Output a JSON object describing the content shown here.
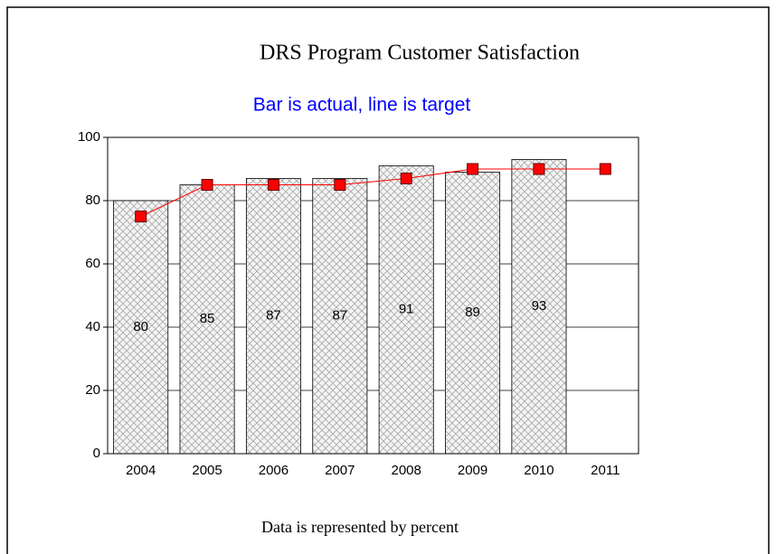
{
  "chart_data": {
    "type": "bar",
    "title": "DRS Program Customer Satisfaction",
    "subtitle": "Bar is actual, line is target",
    "footnote": "Data is represented by percent",
    "categories": [
      "2004",
      "2005",
      "2006",
      "2007",
      "2008",
      "2009",
      "2010",
      "2011"
    ],
    "series": [
      {
        "type": "bar",
        "color": "#b0b0b0",
        "values": [
          80,
          85,
          87,
          87,
          91,
          89,
          93,
          null
        ]
      },
      {
        "type": "line",
        "color": "#ff0000",
        "values": [
          75,
          85,
          85,
          85,
          87,
          90,
          90,
          90
        ]
      }
    ],
    "ylim": [
      0,
      100
    ],
    "yticks": [
      0,
      20,
      40,
      60,
      80,
      100
    ],
    "grid": true
  }
}
